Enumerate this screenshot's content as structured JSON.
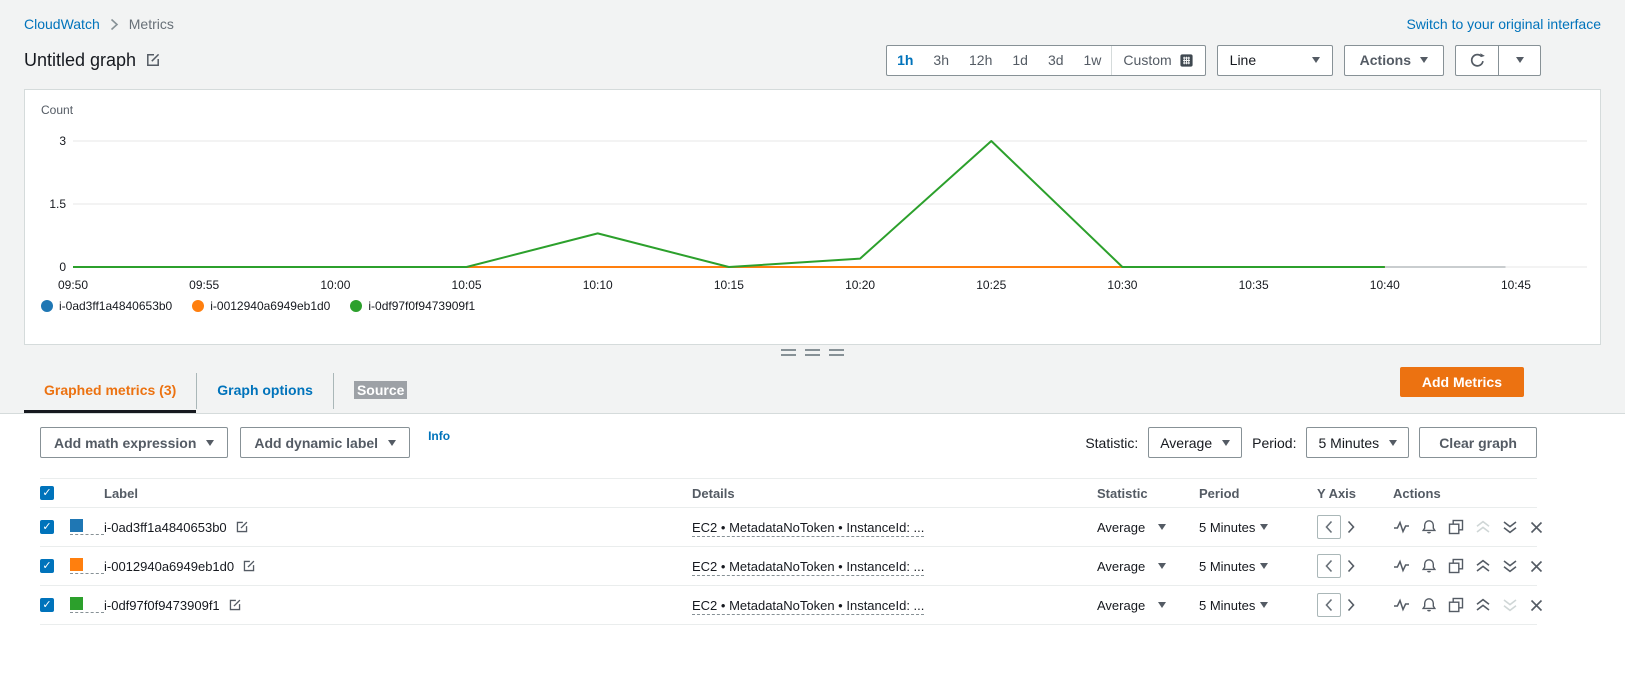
{
  "page": {
    "breadcrumb": {
      "root": "CloudWatch",
      "current": "Metrics"
    },
    "switch_link": "Switch to your original interface",
    "title": "Untitled graph"
  },
  "time_controls": {
    "ranges": [
      "1h",
      "3h",
      "12h",
      "1d",
      "3d",
      "1w"
    ],
    "active_range": "1h",
    "custom_label": "Custom",
    "line_type": "Line",
    "actions_label": "Actions"
  },
  "chart_data": {
    "type": "line",
    "ylabel": "Count",
    "ylim": [
      0,
      3.5
    ],
    "yticks": [
      3,
      1.5,
      0
    ],
    "x_labels": [
      "09:50",
      "09:55",
      "10:00",
      "10:05",
      "10:10",
      "10:15",
      "10:20",
      "10:25",
      "10:30",
      "10:35",
      "10:40",
      "10:45"
    ],
    "x_minutes": [
      0,
      5,
      10,
      15,
      20,
      25,
      30,
      35,
      40,
      45,
      50
    ],
    "grid": true,
    "legend_position": "bottom-left",
    "series": [
      {
        "name": "i-0ad3ff1a4840653b0",
        "color": "#1f77b4",
        "values": [
          0,
          0,
          0,
          0,
          0,
          0,
          0,
          0,
          0,
          0,
          0
        ]
      },
      {
        "name": "i-0012940a6949eb1d0",
        "color": "#ff7f0e",
        "values": [
          0,
          0,
          0,
          0,
          0,
          0,
          0,
          0,
          0,
          0,
          0
        ]
      },
      {
        "name": "i-0df97f0f9473909f1",
        "color": "#2ca02c",
        "values": [
          0,
          0,
          0,
          0,
          0.8,
          0,
          0.2,
          3,
          0,
          0,
          0
        ]
      }
    ]
  },
  "tabs": {
    "items": [
      {
        "label": "Graphed metrics (3)"
      },
      {
        "label": "Graph options"
      },
      {
        "label": "Source"
      }
    ],
    "add_metrics_label": "Add Metrics"
  },
  "toolbar": {
    "add_math_expression": "Add math expression",
    "add_dynamic_label": "Add dynamic label",
    "info": "Info",
    "statistic_label": "Statistic:",
    "statistic_value": "Average",
    "period_label": "Period:",
    "period_value": "5 Minutes",
    "clear_graph": "Clear graph"
  },
  "metrics_table": {
    "columns": [
      "Label",
      "Details",
      "Statistic",
      "Period",
      "Y Axis",
      "Actions"
    ],
    "check_glyph": "✓",
    "rows": [
      {
        "checked": true,
        "color": "#1f77b4",
        "label": "i-0ad3ff1a4840653b0",
        "details": "EC2 • MetadataNoToken • InstanceId: ...",
        "statistic": "Average",
        "period": "5 Minutes",
        "move_up_disabled": true,
        "move_down_disabled": false
      },
      {
        "checked": true,
        "color": "#ff7f0e",
        "label": "i-0012940a6949eb1d0",
        "details": "EC2 • MetadataNoToken • InstanceId: ...",
        "statistic": "Average",
        "period": "5 Minutes",
        "move_up_disabled": false,
        "move_down_disabled": false
      },
      {
        "checked": true,
        "color": "#2ca02c",
        "label": "i-0df97f0f9473909f1",
        "details": "EC2 • MetadataNoToken • InstanceId: ...",
        "statistic": "Average",
        "period": "5 Minutes",
        "move_up_disabled": false,
        "move_down_disabled": true
      }
    ]
  },
  "colors": {
    "link_blue": "#0073bb",
    "primary_orange": "#ec7211",
    "series_blue": "#1f77b4",
    "series_orange": "#ff7f0e",
    "series_green": "#2ca02c"
  }
}
